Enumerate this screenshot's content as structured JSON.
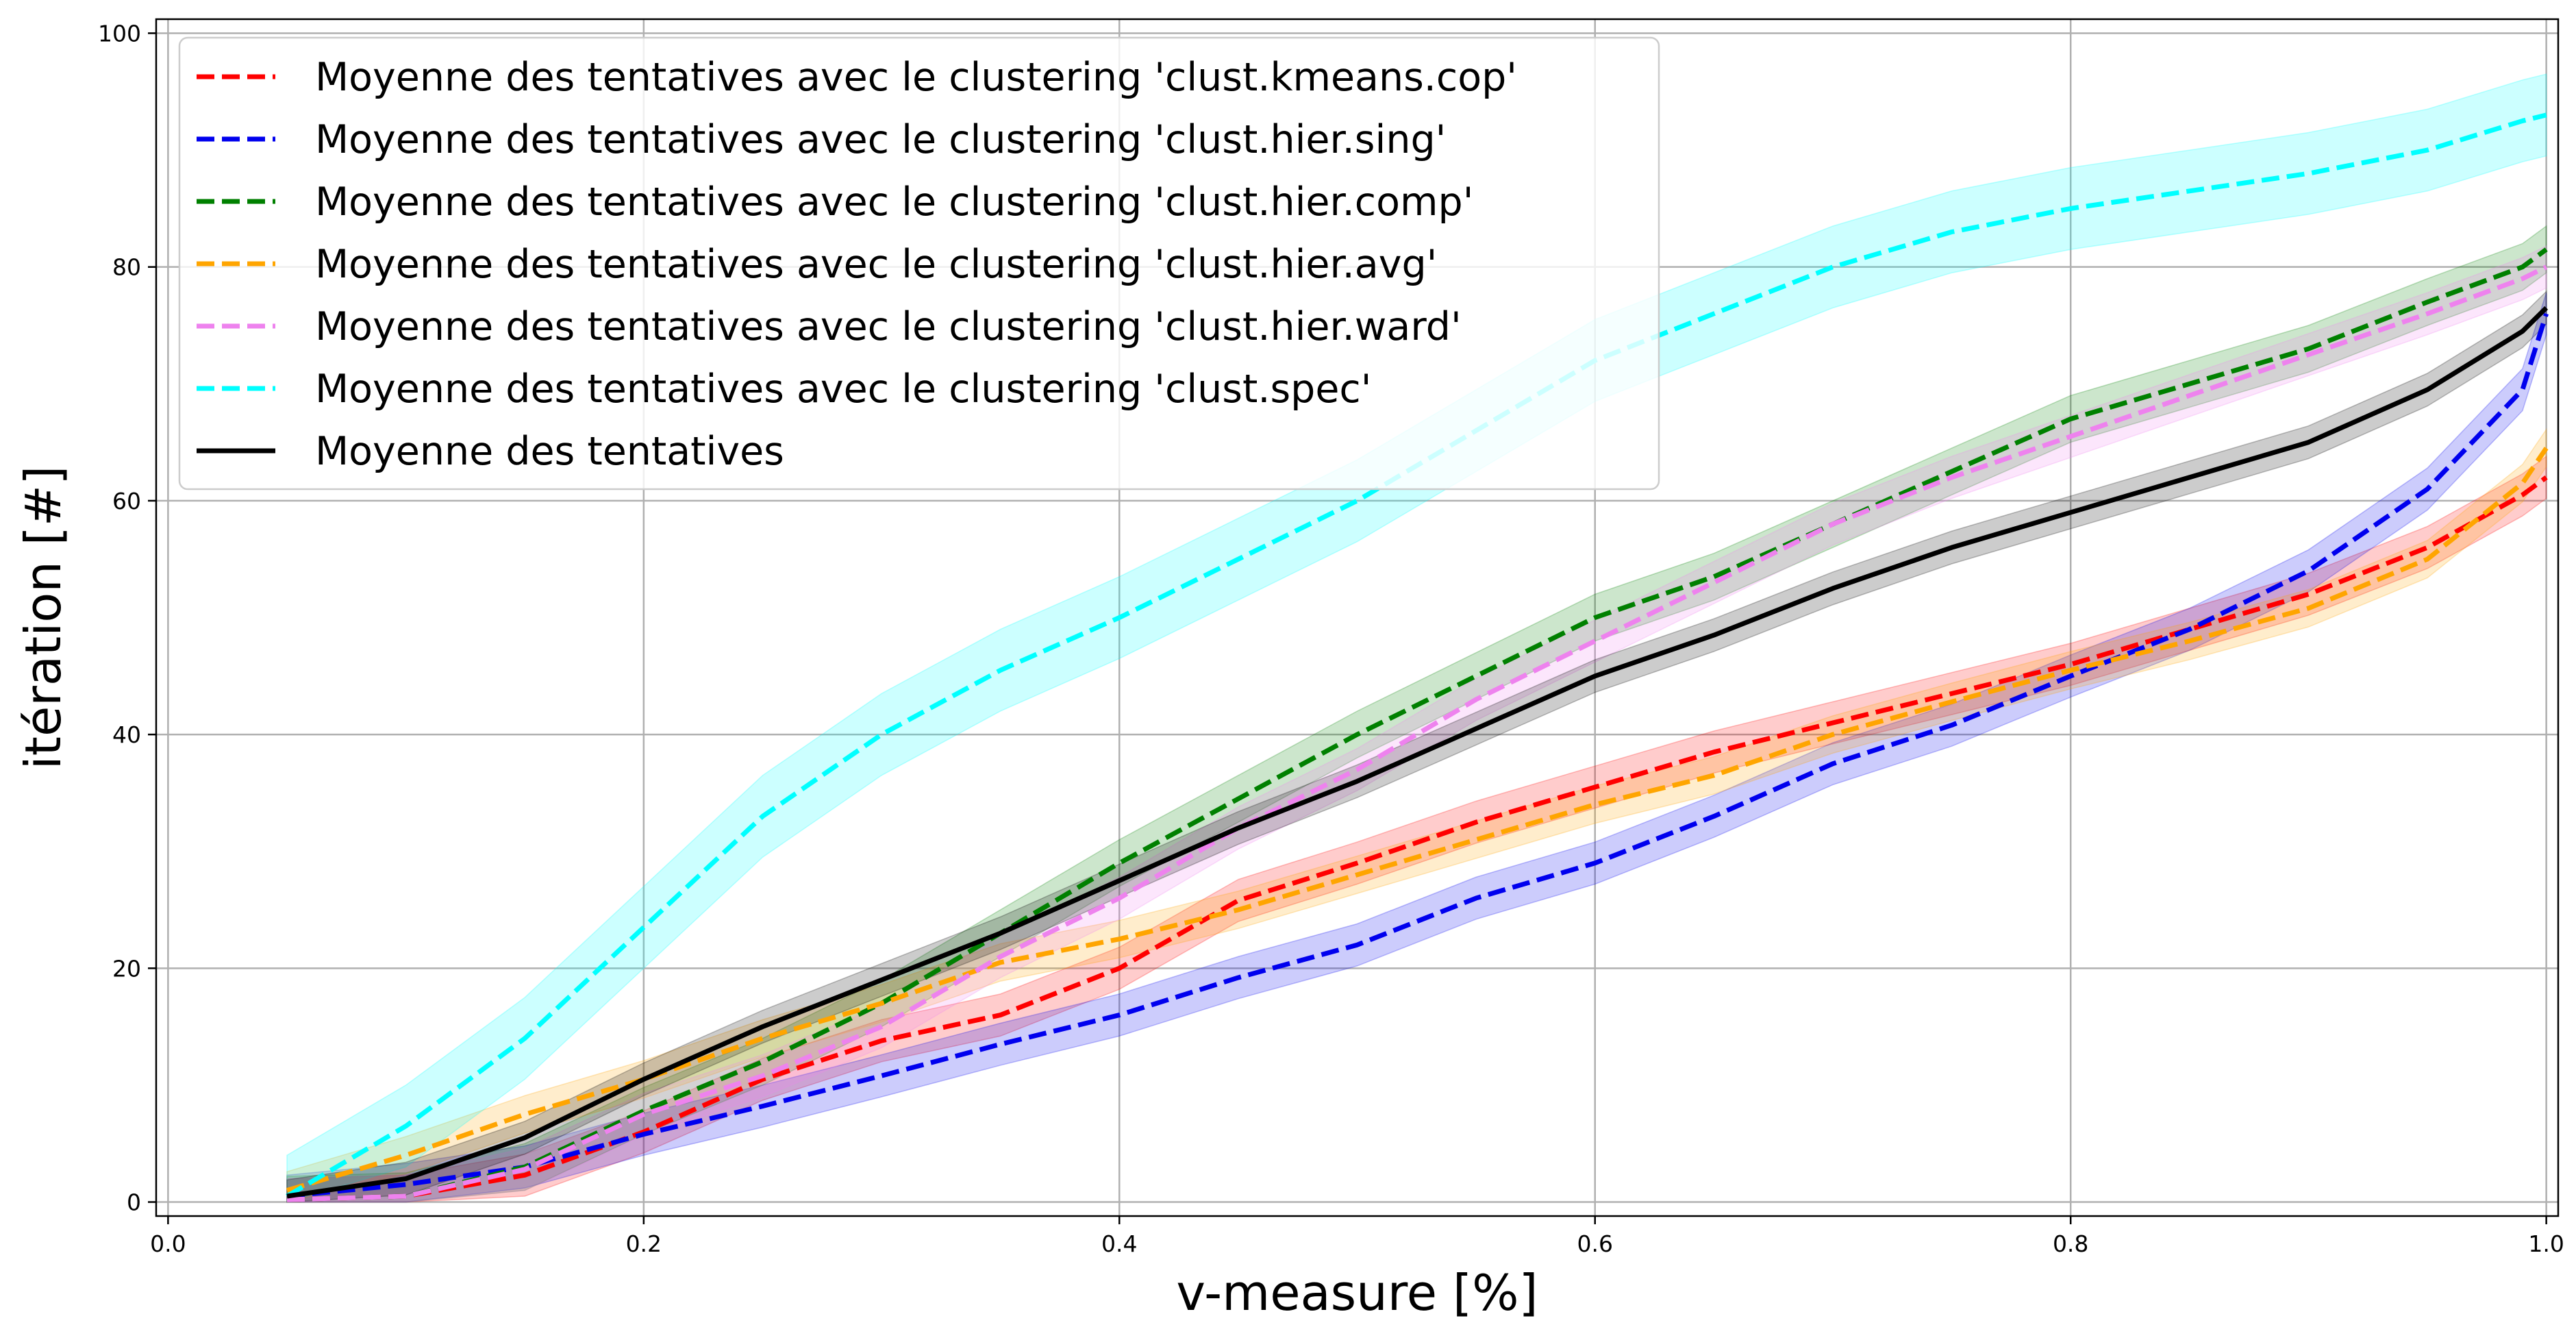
{
  "chart_data": {
    "type": "line",
    "title": "",
    "xlabel": "v-measure [%]",
    "ylabel": "itération [#]",
    "xlim": [
      -0.005,
      1.005
    ],
    "ylim": [
      -1.2,
      101.2
    ],
    "xticks": [
      0.0,
      0.2,
      0.4,
      0.6,
      0.8,
      1.0
    ],
    "xtick_labels": [
      "0.0",
      "0.2",
      "0.4",
      "0.6",
      "0.8",
      "1.0"
    ],
    "yticks": [
      0,
      20,
      40,
      60,
      80,
      100
    ],
    "ytick_labels": [
      "0",
      "20",
      "40",
      "60",
      "80",
      "100"
    ],
    "grid": true,
    "legend_position": "top-left",
    "x": [
      0.05,
      0.1,
      0.15,
      0.2,
      0.25,
      0.3,
      0.35,
      0.4,
      0.45,
      0.5,
      0.55,
      0.6,
      0.65,
      0.7,
      0.75,
      0.8,
      0.85,
      0.9,
      0.95,
      0.99,
      1.0
    ],
    "series": [
      {
        "name": "Moyenne des tentatives avec le clustering 'clust.kmeans.cop'",
        "color": "#ff0000",
        "style": "dashed",
        "values": [
          0.2,
          0.5,
          2.3,
          6.0,
          10.5,
          13.8,
          16.0,
          20.0,
          25.8,
          29.0,
          32.5,
          35.5,
          38.5,
          41.0,
          43.5,
          46.0,
          49.0,
          52.0,
          56.0,
          60.5,
          62.0
        ],
        "band": 1.8
      },
      {
        "name": "Moyenne des tentatives avec le clustering 'clust.hier.sing'",
        "color": "#0000ee",
        "style": "dashed",
        "values": [
          0.5,
          1.5,
          3.0,
          5.8,
          8.2,
          10.8,
          13.5,
          16.0,
          19.2,
          22.0,
          26.0,
          29.0,
          33.0,
          37.5,
          40.8,
          45.0,
          49.0,
          54.0,
          61.0,
          69.5,
          76.0
        ],
        "band": 1.8
      },
      {
        "name": "Moyenne des tentatives avec le clustering 'clust.hier.comp'",
        "color": "#008000",
        "style": "dashed",
        "values": [
          0.2,
          0.5,
          3.0,
          7.8,
          12.0,
          17.0,
          23.0,
          29.0,
          34.5,
          40.0,
          45.0,
          50.0,
          53.5,
          58.0,
          62.5,
          67.0,
          70.0,
          73.0,
          77.0,
          80.0,
          81.5
        ],
        "band": 2.0
      },
      {
        "name": "Moyenne des tentatives avec le clustering 'clust.hier.avg'",
        "color": "#ffa500",
        "style": "dashed",
        "values": [
          1.0,
          4.0,
          7.5,
          10.5,
          14.0,
          17.0,
          20.5,
          22.5,
          25.0,
          28.0,
          31.0,
          34.0,
          36.5,
          40.0,
          42.8,
          45.5,
          48.0,
          50.8,
          55.0,
          61.5,
          64.5
        ],
        "band": 1.6
      },
      {
        "name": "Moyenne des tentatives avec le clustering 'clust.hier.ward'",
        "color": "#ee82ee",
        "style": "dashed",
        "values": [
          0.2,
          0.5,
          2.8,
          7.5,
          10.8,
          15.0,
          21.0,
          26.0,
          32.0,
          37.0,
          43.0,
          48.0,
          53.0,
          58.0,
          62.0,
          65.5,
          69.0,
          72.5,
          76.0,
          79.0,
          80.0
        ],
        "band": 1.8
      },
      {
        "name": "Moyenne des tentatives avec le clustering 'clust.spec'",
        "color": "#00ffff",
        "style": "dashed",
        "values": [
          0.5,
          6.5,
          14.0,
          23.5,
          33.0,
          40.0,
          45.5,
          50.0,
          55.0,
          60.0,
          66.0,
          72.0,
          76.0,
          80.0,
          83.0,
          85.0,
          86.5,
          88.0,
          90.0,
          92.5,
          93.0
        ],
        "band": 3.5
      },
      {
        "name": "Moyenne des tentatives",
        "color": "#000000",
        "style": "solid",
        "values": [
          0.5,
          2.0,
          5.5,
          10.5,
          15.0,
          19.0,
          23.0,
          27.5,
          32.0,
          36.0,
          40.5,
          45.0,
          48.5,
          52.5,
          56.0,
          59.0,
          62.0,
          65.0,
          69.5,
          74.5,
          76.5
        ],
        "band": 1.4
      }
    ]
  }
}
